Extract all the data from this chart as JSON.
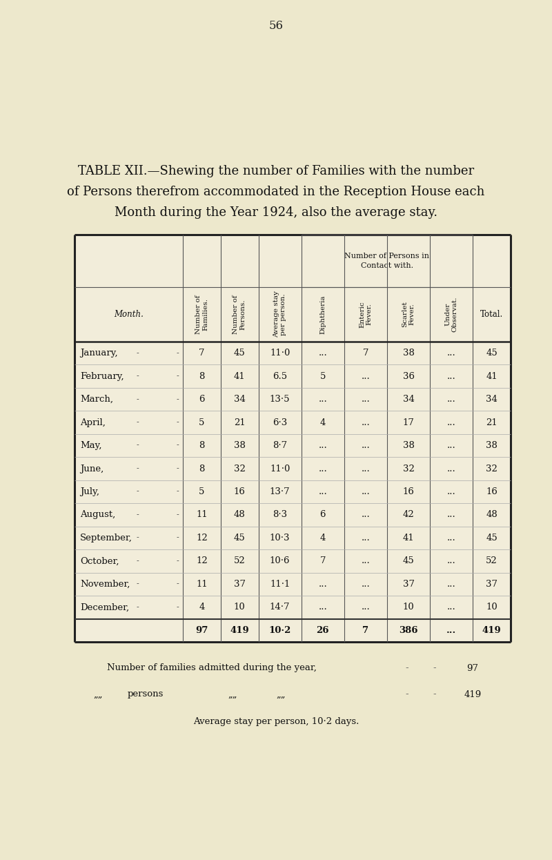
{
  "page_number": "56",
  "title_line1": "TABLE XII.—Shewing the number of Families with the number",
  "title_line2": "of Persons therefrom accommodated in the Reception House each",
  "title_line3": "Month during the Year 1924, also the average stay.",
  "bg_color": "#ede8cc",
  "table_bg": "#f2edda",
  "months": [
    "January,",
    "February,",
    "March,",
    "April,",
    "May,",
    "June,",
    "July,",
    "August,",
    "September,",
    "October,",
    "November,",
    "December,",
    ""
  ],
  "num_families": [
    "7",
    "8",
    "6",
    "5",
    "8",
    "8",
    "5",
    "11",
    "12",
    "12",
    "11",
    "4",
    "97"
  ],
  "num_persons": [
    "45",
    "41",
    "34",
    "21",
    "38",
    "32",
    "16",
    "48",
    "45",
    "52",
    "37",
    "10",
    "419"
  ],
  "avg_stay": [
    "11·0",
    "6.5",
    "13·5",
    "6·3",
    "8·7",
    "11·0",
    "13·7",
    "8·3",
    "10·3",
    "10·6",
    "11·1",
    "14·7",
    "10·2"
  ],
  "diphtheria": [
    "...",
    "5",
    "...",
    "4",
    "...",
    "...",
    "...",
    "6",
    "4",
    "7",
    "...",
    "...",
    "26"
  ],
  "enteric_fever": [
    "7",
    "...",
    "...",
    "...",
    "...",
    "...",
    "...",
    "...",
    "...",
    "...",
    "...",
    "...",
    "7"
  ],
  "scarlet_fever": [
    "38",
    "36",
    "34",
    "17",
    "38",
    "32",
    "16",
    "42",
    "41",
    "45",
    "37",
    "10",
    "386"
  ],
  "under_observat": [
    "...",
    "...",
    "...",
    "...",
    "...",
    "...",
    "...",
    "...",
    "...",
    "...",
    "...",
    "...",
    "..."
  ],
  "total": [
    "45",
    "41",
    "34",
    "21",
    "38",
    "32",
    "16",
    "48",
    "45",
    "52",
    "37",
    "10",
    "419"
  ],
  "footnote1": "Number of families admitted during the year,",
  "footnote1_dots": "- - -",
  "footnote1_val": "97",
  "footnote2a": "„„",
  "footnote2b": "persons",
  "footnote2c": "„„",
  "footnote2d": "„„",
  "footnote2_dots": "- -",
  "footnote2_val": "419",
  "footnote3": "Average stay per person, 10·2 days."
}
